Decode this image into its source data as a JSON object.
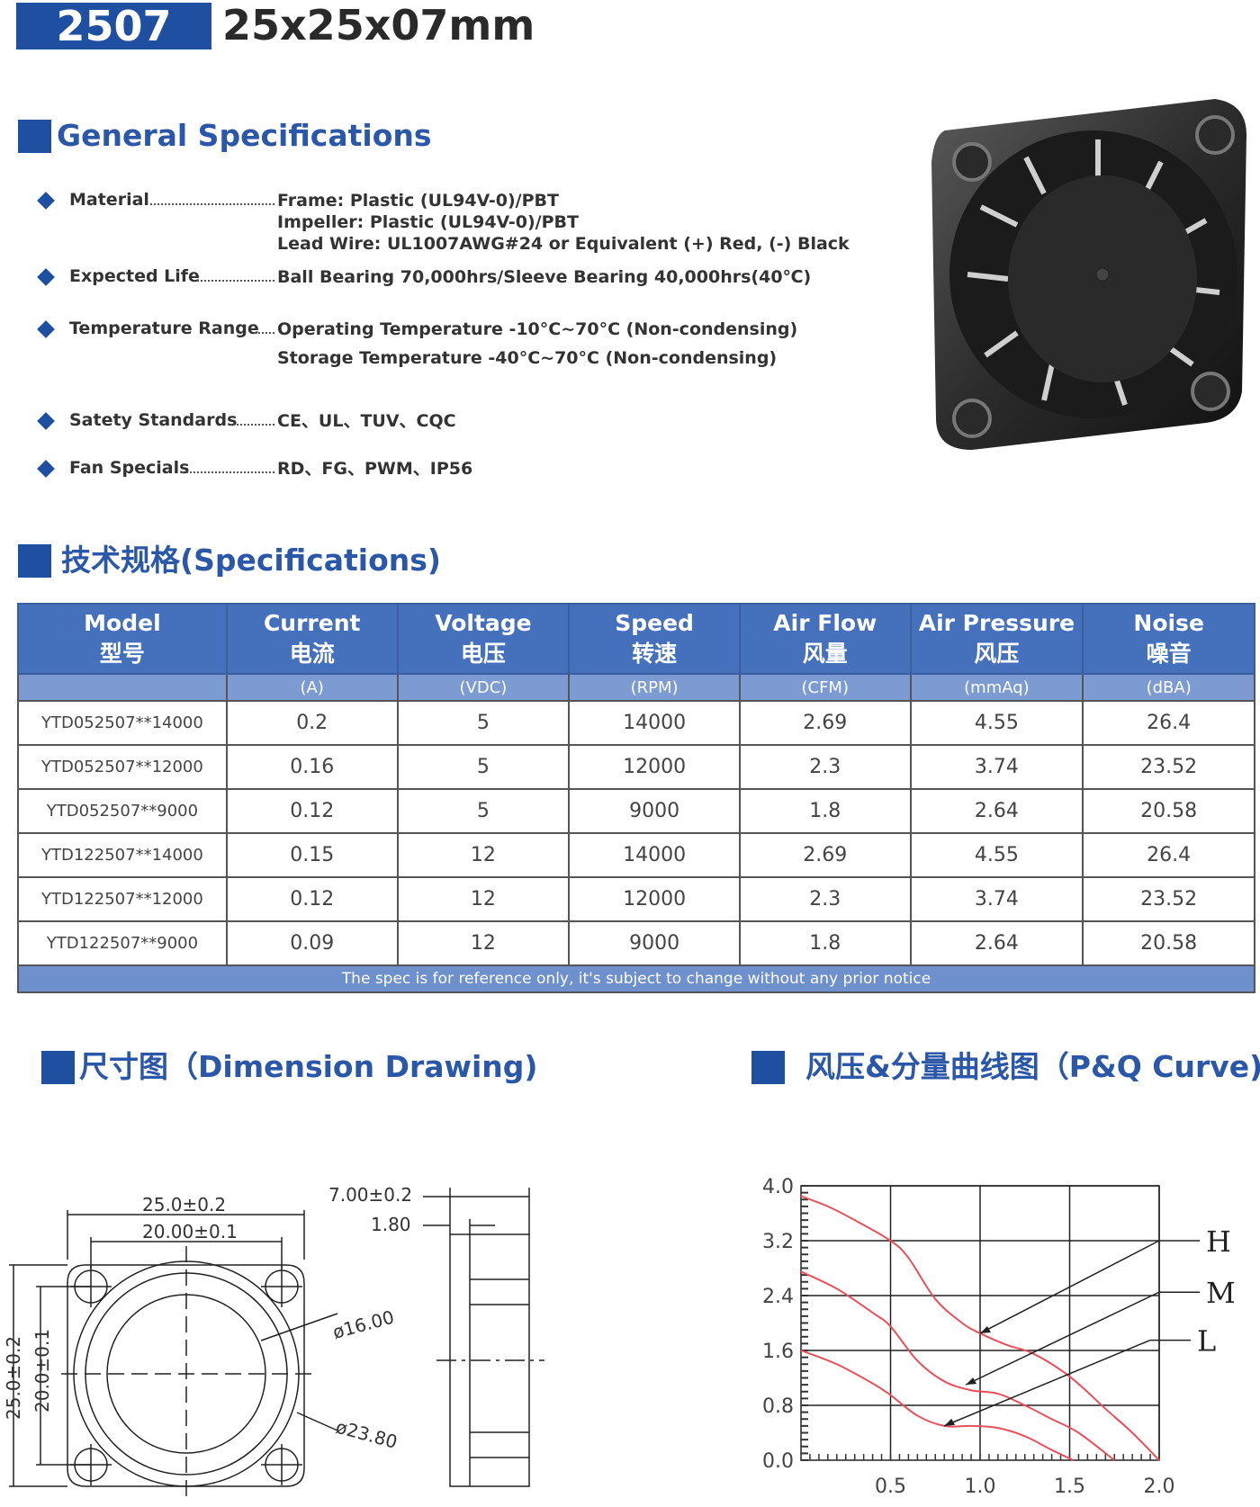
{
  "header": {
    "series": "2507",
    "size": "25x25x07mm"
  },
  "general": {
    "title": "General Specifications",
    "items": [
      {
        "label": "Material",
        "values": [
          "Frame: Plastic (UL94V-0)/PBT",
          "Impeller: Plastic (UL94V-0)/PBT",
          "Lead Wire: UL1007AWG#24 or Equivalent (+) Red, (-) Black"
        ]
      },
      {
        "label": "Expected Life",
        "values": [
          "Ball Bearing 70,000hrs/Sleeve Bearing 40,000hrs(40℃)"
        ]
      },
      {
        "label": "Temperature Range",
        "values": [
          "Operating Temperature -10°C~70°C (Non-condensing)",
          "Storage Temperature -40°C~70°C (Non-condensing)"
        ]
      },
      {
        "label": "Satety Standards",
        "values": [
          "CE、UL、TUV、CQC"
        ]
      },
      {
        "label": "Fan Specials",
        "values": [
          "RD、FG、PWM、IP56"
        ]
      }
    ],
    "accent": "#1f4fa0"
  },
  "specs": {
    "title": "技术规格(Specifications)",
    "columns": [
      {
        "en": "Model",
        "cn": "型号",
        "unit": ""
      },
      {
        "en": "Current",
        "cn": "电流",
        "unit": "(A)"
      },
      {
        "en": "Voltage",
        "cn": "电压",
        "unit": "(VDC)"
      },
      {
        "en": "Speed",
        "cn": "转速",
        "unit": "(RPM)"
      },
      {
        "en": "Air Flow",
        "cn": "风量",
        "unit": "(CFM)"
      },
      {
        "en": "Air Pressure",
        "cn": "风压",
        "unit": "(mmAq)"
      },
      {
        "en": "Noise",
        "cn": "噪音",
        "unit": "(dBA)"
      }
    ],
    "rows": [
      [
        "YTD052507**14000",
        "0.2",
        "5",
        "14000",
        "2.69",
        "4.55",
        "26.4"
      ],
      [
        "YTD052507**12000",
        "0.16",
        "5",
        "12000",
        "2.3",
        "3.74",
        "23.52"
      ],
      [
        "YTD052507**9000",
        "0.12",
        "5",
        "9000",
        "1.8",
        "2.64",
        "20.58"
      ],
      [
        "YTD122507**14000",
        "0.15",
        "12",
        "14000",
        "2.69",
        "4.55",
        "26.4"
      ],
      [
        "YTD122507**12000",
        "0.12",
        "12",
        "12000",
        "2.3",
        "3.74",
        "23.52"
      ],
      [
        "YTD122507**9000",
        "0.09",
        "12",
        "9000",
        "1.8",
        "2.64",
        "20.58"
      ]
    ],
    "footnote": "The spec is for reference only, it's subject to change without any prior notice",
    "header_color": "#4470bc"
  },
  "dimension": {
    "title": "尺寸图（Dimension Drawing)",
    "labels": {
      "width_outer": "25.0±0.2",
      "width_hole": "20.00±0.1",
      "height_outer": "25.0±0.2",
      "height_hole": "20.0±0.1",
      "hub_dia": "ø16.00",
      "frame_dia": "ø23.80",
      "thickness": "7.00±0.2",
      "flange": "1.80"
    }
  },
  "pq": {
    "title": "风压&分量曲线图（P&Q Curve)"
  },
  "chart_data": {
    "type": "line",
    "title": "",
    "xlabel": "",
    "ylabel": "",
    "xlim": [
      0,
      2.0
    ],
    "ylim": [
      0,
      4.0
    ],
    "xticks": [
      "0.5",
      "1.0",
      "1.5",
      "2.0"
    ],
    "yticks": [
      "0.0",
      "0.8",
      "1.6",
      "2.4",
      "3.2",
      "4.0"
    ],
    "grid": true,
    "line_color": "#e8505a",
    "series": [
      {
        "name": "H",
        "x": [
          0,
          0.15,
          0.3,
          0.5,
          0.6,
          0.75,
          0.9,
          1.0,
          1.15,
          1.3,
          1.5,
          1.7,
          1.85,
          2.0
        ],
        "y": [
          3.85,
          3.7,
          3.5,
          3.2,
          2.95,
          2.35,
          2.0,
          1.85,
          1.68,
          1.55,
          1.22,
          0.75,
          0.4,
          0.0
        ]
      },
      {
        "name": "M",
        "x": [
          0,
          0.2,
          0.4,
          0.5,
          0.65,
          0.8,
          0.95,
          1.1,
          1.25,
          1.4,
          1.55,
          1.75
        ],
        "y": [
          2.75,
          2.5,
          2.15,
          1.95,
          1.45,
          1.15,
          1.02,
          0.97,
          0.8,
          0.6,
          0.4,
          0.0
        ]
      },
      {
        "name": "L",
        "x": [
          0,
          0.2,
          0.4,
          0.5,
          0.65,
          0.8,
          0.95,
          1.1,
          1.25,
          1.4,
          1.52
        ],
        "y": [
          1.6,
          1.4,
          1.12,
          0.95,
          0.65,
          0.5,
          0.5,
          0.47,
          0.35,
          0.15,
          0.0
        ]
      }
    ],
    "callouts": [
      {
        "label": "H",
        "target": [
          1.0,
          1.85
        ],
        "from": [
          2.0,
          3.2
        ]
      },
      {
        "label": "M",
        "target": [
          0.92,
          1.1
        ],
        "from": [
          2.0,
          2.45
        ]
      },
      {
        "label": "L",
        "target": [
          0.8,
          0.5
        ],
        "from": [
          1.95,
          1.75
        ]
      }
    ]
  }
}
